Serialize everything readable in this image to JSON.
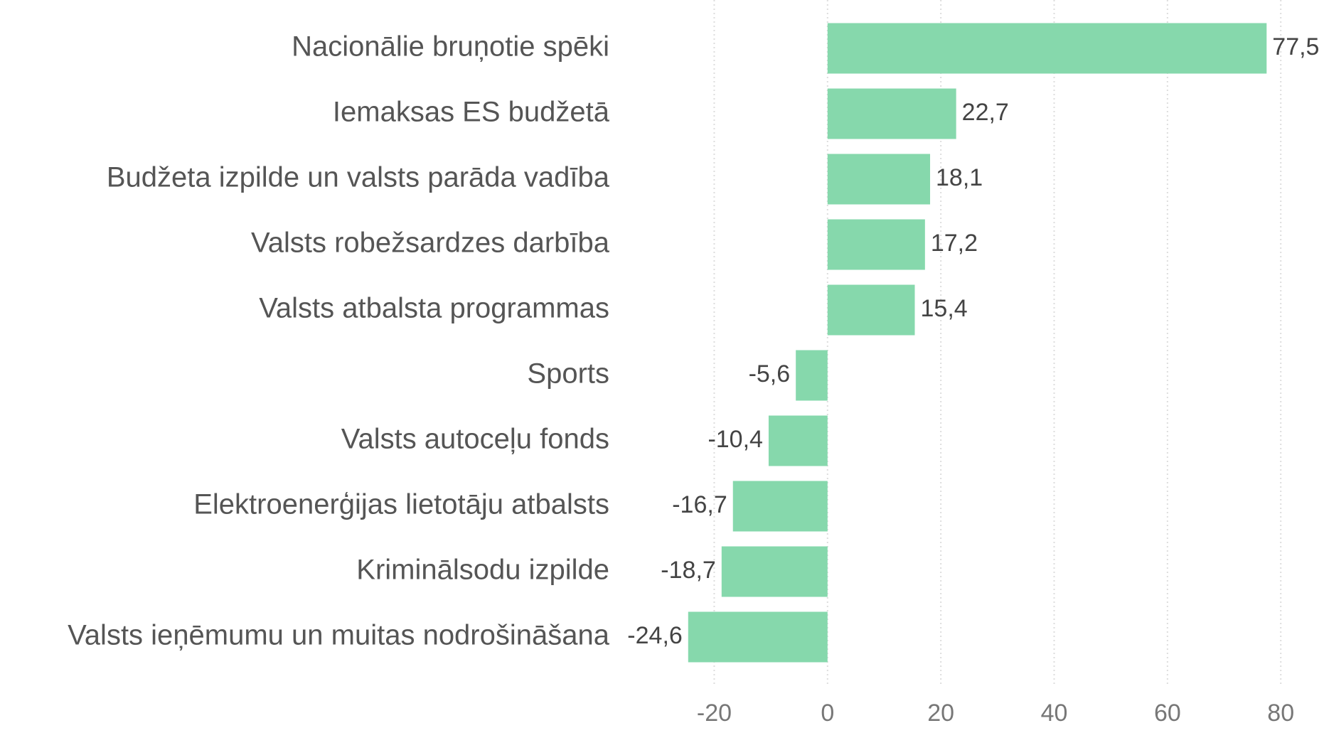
{
  "chart_data": {
    "type": "bar",
    "orientation": "horizontal",
    "categories": [
      "Nacionālie bruņotie spēki",
      "Iemaksas ES budžetā",
      "Budžeta izpilde un valsts parāda vadība",
      "Valsts robežsardzes darbība",
      "Valsts atbalsta programmas",
      "Sports",
      "Valsts autoceļu fonds",
      "Elektroenerģijas lietotāju atbalsts",
      "Kriminālsodu izpilde",
      "Valsts ieņēmumu un muitas nodrošināšana"
    ],
    "values": [
      77.5,
      22.7,
      18.1,
      17.2,
      15.4,
      -5.6,
      -10.4,
      -16.7,
      -18.7,
      -24.6
    ],
    "value_labels": [
      "77,5",
      "22,7",
      "18,1",
      "17,2",
      "15,4",
      "-5,6",
      "-10,4",
      "-16,7",
      "-18,7",
      "-24,6"
    ],
    "color": "#86d8ac",
    "xlim": [
      -37,
      87
    ],
    "xticks": [
      -20,
      0,
      20,
      40,
      60,
      80
    ],
    "grid": true
  }
}
